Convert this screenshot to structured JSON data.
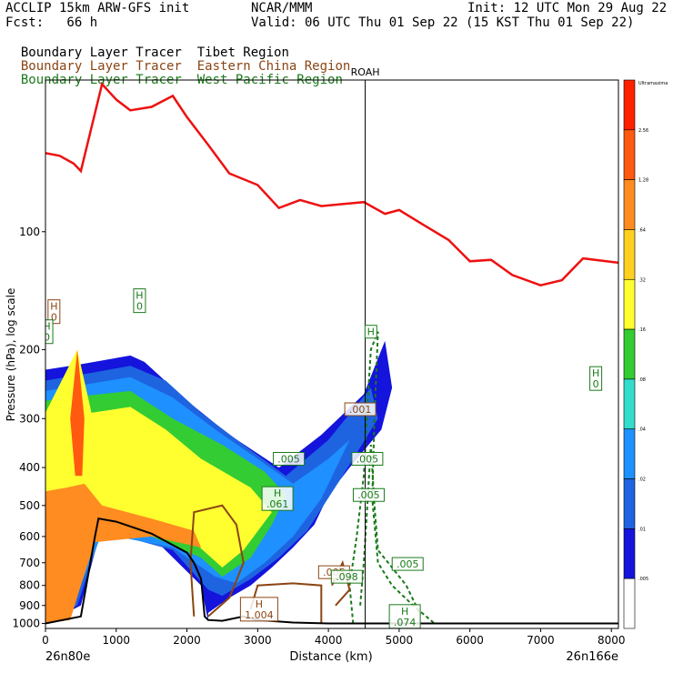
{
  "header": {
    "line1_left": "ACCLIP 15km ARW-GFS init",
    "line1_center": "NCAR/MMM",
    "line1_right": "Init: 12 UTC Mon 29 Aug 22",
    "line2_left": "Fcst:   66 h",
    "line2_right": "Valid: 06 UTC Thu 01 Sep 22 (15 KST Thu 01 Sep 22)",
    "legend": [
      {
        "title": "Boundary Layer Tracer",
        "region": "Tibet Region",
        "color": "#000000"
      },
      {
        "title": "Boundary Layer Tracer",
        "region": "Eastern China Region",
        "color": "#8B4513"
      },
      {
        "title": "Boundary Layer Tracer",
        "region": "West Pacific Region",
        "color": "#1a7a1a"
      }
    ]
  },
  "chart_data": {
    "type": "area",
    "xlabel": "Distance (km)",
    "ylabel": "Pressure (hPa), log scale",
    "x_ticks": [
      "0",
      "1000",
      "2000",
      "3000",
      "4000",
      "5000",
      "6000",
      "7000",
      "8000"
    ],
    "y_ticks": [
      "100",
      "200",
      "300",
      "400",
      "500",
      "600",
      "700",
      "800",
      "900",
      "1000"
    ],
    "y_scale": "log",
    "xlim": [
      0,
      8100
    ],
    "ylim": [
      1030,
      41
    ],
    "start_label": "26n80e",
    "end_label": "26n166e",
    "station": {
      "name": "ROAH",
      "x": 4520
    },
    "colorbar": {
      "tick_labels": [
        "Ultramaxima",
        "2.56",
        "1.28",
        ".64",
        ".32",
        ".16",
        ".08",
        ".04",
        ".02",
        ".01",
        ".005"
      ],
      "colors": [
        "#ff2000",
        "#ff5a10",
        "#ff8c20",
        "#ffd020",
        "#ffff30",
        "#33cc33",
        "#33ddcc",
        "#1e90ff",
        "#1e64e0",
        "#1414dc",
        "#ffffff"
      ]
    },
    "tropopause": {
      "color": "#ee1111",
      "x": [
        0,
        200,
        400,
        500,
        800,
        1000,
        1200,
        1500,
        1800,
        2000,
        2300,
        2600,
        3000,
        3300,
        3600,
        3900,
        4200,
        4500,
        4800,
        5000,
        5300,
        5700,
        6000,
        6300,
        6600,
        7000,
        7300,
        7600,
        8100
      ],
      "p": [
        63,
        64,
        67,
        70,
        42,
        46,
        49,
        48,
        45,
        51,
        60,
        71,
        76,
        87,
        83,
        86,
        85,
        84,
        90,
        88,
        95,
        105,
        119,
        118,
        129,
        137,
        133,
        117,
        120
      ]
    },
    "terrain": {
      "x": [
        0,
        500,
        700,
        750,
        1000,
        1500,
        2000,
        2100,
        2200,
        2250,
        2300,
        2500,
        2800,
        3000,
        3500,
        4000,
        5000,
        6000,
        8100
      ],
      "p": [
        1000,
        960,
        600,
        540,
        550,
        590,
        660,
        700,
        770,
        960,
        980,
        985,
        960,
        980,
        995,
        1000,
        1000,
        1000,
        1000
      ]
    },
    "tracer_levels": [
      0.005,
      0.01,
      0.02,
      0.04,
      0.08,
      0.16,
      0.32,
      0.64,
      1.28,
      2.56
    ],
    "labels": [
      {
        "text": "H\n0",
        "x": 120,
        "p": 160,
        "color": "#8B4513"
      },
      {
        "text": "H\n0",
        "x": 1330,
        "p": 150,
        "color": "#1a7a1a"
      },
      {
        "text": "H\n0",
        "x": 20,
        "p": 180,
        "color": "#1a7a1a"
      },
      {
        "text": "H",
        "x": 4600,
        "p": 180,
        "color": "#1a7a1a"
      },
      {
        "text": "H\n0",
        "x": 7780,
        "p": 237,
        "color": "#1a7a1a"
      },
      {
        "text": ".001",
        "x": 4450,
        "p": 284,
        "color": "#8B4513"
      },
      {
        "text": ".005",
        "x": 3440,
        "p": 380,
        "color": "#1a7a1a"
      },
      {
        "text": ".005",
        "x": 4550,
        "p": 380,
        "color": "#1a7a1a"
      },
      {
        "text": ".005",
        "x": 4570,
        "p": 470,
        "color": "#1a7a1a"
      },
      {
        "text": "H\n.061",
        "x": 3280,
        "p": 480,
        "color": "#1a7a1a"
      },
      {
        "text": ".005",
        "x": 4080,
        "p": 740,
        "color": "#8B4513"
      },
      {
        "text": ".098",
        "x": 4260,
        "p": 760,
        "color": "#1a7a1a"
      },
      {
        "text": ".005",
        "x": 5120,
        "p": 705,
        "color": "#1a7a1a"
      },
      {
        "text": "H\n1.004",
        "x": 3020,
        "p": 920,
        "color": "#8B4513"
      },
      {
        "text": "H\n.074",
        "x": 5080,
        "p": 960,
        "color": "#1a7a1a"
      }
    ]
  }
}
